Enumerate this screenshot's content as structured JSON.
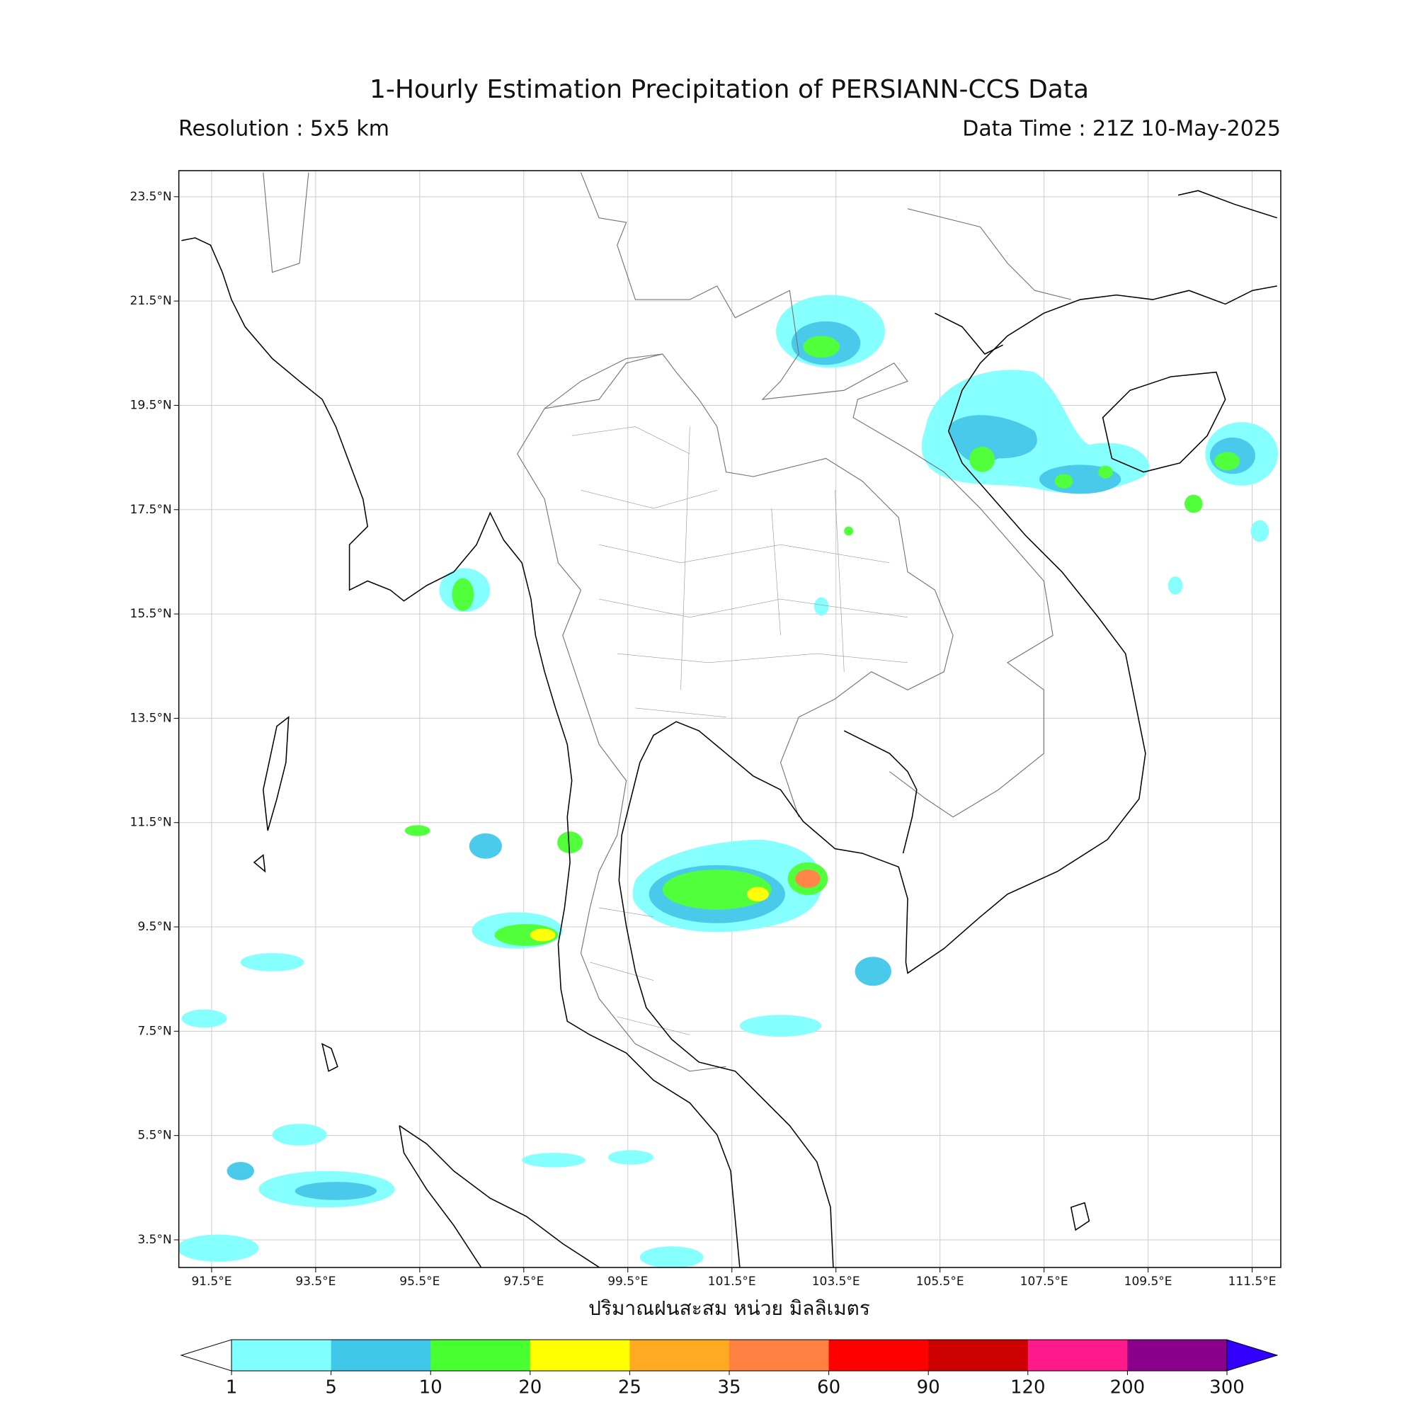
{
  "title": "1-Hourly Estimation Precipitation of PERSIANN-CCS Data",
  "resolution": "Resolution : 5x5 km",
  "data_time": "Data Time : 21Z 10-May-2025",
  "map": {
    "xlim": [
      90.87,
      112.05
    ],
    "ylim": [
      2.97,
      24.0
    ],
    "grid": true,
    "xticks": [
      {
        "value": 91.5,
        "label": "91.5°E"
      },
      {
        "value": 93.5,
        "label": "93.5°E"
      },
      {
        "value": 95.5,
        "label": "95.5°E"
      },
      {
        "value": 97.5,
        "label": "97.5°E"
      },
      {
        "value": 99.5,
        "label": "99.5°E"
      },
      {
        "value": 101.5,
        "label": "101.5°E"
      },
      {
        "value": 103.5,
        "label": "103.5°E"
      },
      {
        "value": 105.5,
        "label": "105.5°E"
      },
      {
        "value": 107.5,
        "label": "107.5°E"
      },
      {
        "value": 109.5,
        "label": "109.5°E"
      },
      {
        "value": 111.5,
        "label": "111.5°E"
      }
    ],
    "yticks": [
      {
        "value": 23.5,
        "label": "23.5°N"
      },
      {
        "value": 21.5,
        "label": "21.5°N"
      },
      {
        "value": 19.5,
        "label": "19.5°N"
      },
      {
        "value": 17.5,
        "label": "17.5°N"
      },
      {
        "value": 15.5,
        "label": "15.5°N"
      },
      {
        "value": 13.5,
        "label": "13.5°N"
      },
      {
        "value": 11.5,
        "label": "11.5°N"
      },
      {
        "value": 9.5,
        "label": "9.5°N"
      },
      {
        "value": 7.5,
        "label": "7.5°N"
      },
      {
        "value": 5.5,
        "label": "5.5°N"
      },
      {
        "value": 3.5,
        "label": "3.5°N"
      }
    ]
  },
  "colorbar": {
    "label": "ปริมาณฝนสะสม หน่วย มิลลิเมตร",
    "levels": [
      1,
      5,
      10,
      20,
      25,
      35,
      60,
      90,
      120,
      200,
      300
    ],
    "colors": [
      "#80ffff",
      "#40c8ea",
      "#48ff30",
      "#ffff00",
      "#ffaa20",
      "#ff8040",
      "#ff0000",
      "#cc0000",
      "#ff1a8c",
      "#8b008b"
    ],
    "under_color": "#ffffff",
    "over_color": "#3300ff"
  }
}
